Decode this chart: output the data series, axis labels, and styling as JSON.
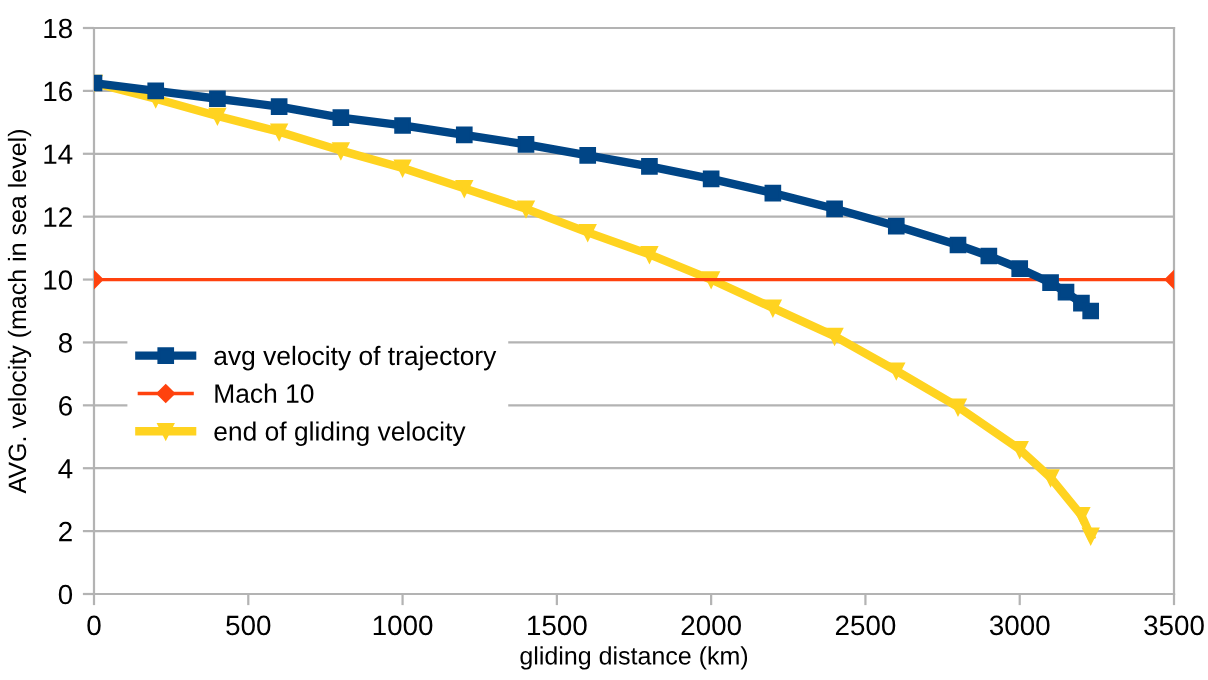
{
  "chart_data": {
    "type": "line",
    "xlabel": "gliding distance (km)",
    "ylabel": "AVG. velocity (mach in sea level)",
    "xlim": [
      0,
      3500
    ],
    "xticks": [
      0,
      500,
      1000,
      1500,
      2000,
      2500,
      3000,
      3500
    ],
    "ylim": [
      0,
      18
    ],
    "yticks": [
      0,
      2,
      4,
      6,
      8,
      10,
      12,
      14,
      16,
      18
    ],
    "grid": "y",
    "legend": "left",
    "series": [
      {
        "name": "avg velocity of trajectory",
        "color": "#004586",
        "marker": "square",
        "x": [
          0,
          200,
          400,
          600,
          800,
          1000,
          1200,
          1400,
          1600,
          1800,
          2000,
          2200,
          2400,
          2600,
          2800,
          2900,
          3000,
          3100,
          3150,
          3200,
          3230
        ],
        "values": [
          16.25,
          16.0,
          15.75,
          15.5,
          15.15,
          14.9,
          14.6,
          14.3,
          13.95,
          13.6,
          13.2,
          12.75,
          12.25,
          11.7,
          11.1,
          10.75,
          10.35,
          9.9,
          9.6,
          9.25,
          9.0
        ]
      },
      {
        "name": "Mach 10",
        "color": "#ff420e",
        "marker": "diamond",
        "x": [
          0,
          3500
        ],
        "values": [
          10,
          10
        ]
      },
      {
        "name": "end of gliding velocity",
        "color": "#ffd320",
        "marker": "triangle",
        "x": [
          0,
          200,
          400,
          600,
          800,
          1000,
          1200,
          1400,
          1600,
          1800,
          2000,
          2200,
          2400,
          2600,
          2800,
          3000,
          3100,
          3200,
          3230
        ],
        "values": [
          16.25,
          15.75,
          15.2,
          14.7,
          14.1,
          13.55,
          12.9,
          12.25,
          11.5,
          10.8,
          10.0,
          9.1,
          8.2,
          7.1,
          5.95,
          4.6,
          3.7,
          2.5,
          1.85
        ]
      }
    ]
  }
}
